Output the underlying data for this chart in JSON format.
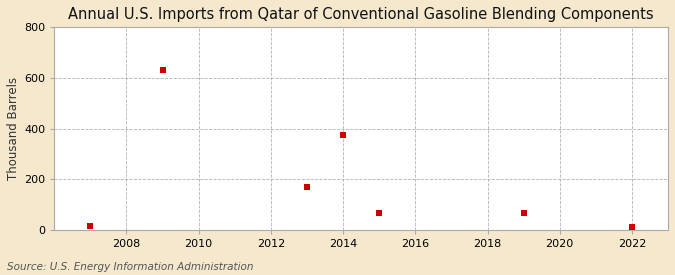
{
  "title": "Annual U.S. Imports from Qatar of Conventional Gasoline Blending Components",
  "ylabel": "Thousand Barrels",
  "source": "Source: U.S. Energy Information Administration",
  "x_values": [
    2007,
    2009,
    2013,
    2014,
    2015,
    2019,
    2022
  ],
  "y_values": [
    15,
    630,
    170,
    375,
    65,
    65,
    10
  ],
  "marker_color": "#cc0000",
  "marker_size": 5,
  "marker_shape": "s",
  "xlim": [
    2006.0,
    2023.0
  ],
  "ylim": [
    0,
    800
  ],
  "yticks": [
    0,
    200,
    400,
    600,
    800
  ],
  "xticks": [
    2008,
    2010,
    2012,
    2014,
    2016,
    2018,
    2020,
    2022
  ],
  "figure_bg_color": "#f5e8cc",
  "plot_bg_color": "#ffffff",
  "grid_color": "#aaaaaa",
  "border_color": "#aaaaaa",
  "title_fontsize": 10.5,
  "label_fontsize": 8.5,
  "tick_fontsize": 8,
  "source_fontsize": 7.5
}
